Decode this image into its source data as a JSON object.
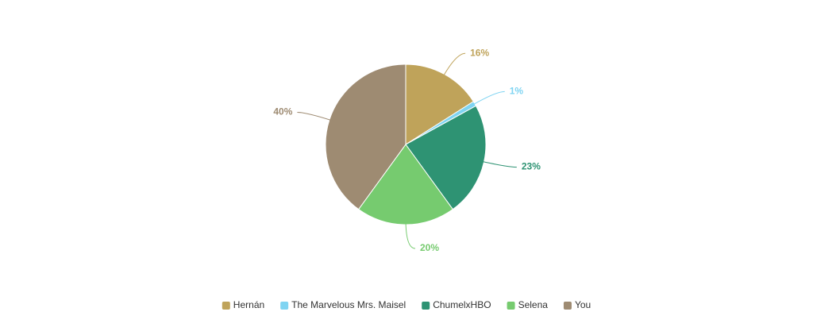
{
  "chart_data": {
    "type": "pie",
    "categories": [
      "Hernán",
      "The Marvelous Mrs. Maisel",
      "ChumelxHBO",
      "Selena",
      "You"
    ],
    "values": [
      16,
      1,
      23,
      20,
      40
    ],
    "value_labels": [
      "16%",
      "1%",
      "23%",
      "20%",
      "40%"
    ],
    "colors": [
      "#bfa35a",
      "#7fd4f2",
      "#2e9373",
      "#76cb6f",
      "#9e8b72"
    ],
    "legend": "bottom"
  }
}
